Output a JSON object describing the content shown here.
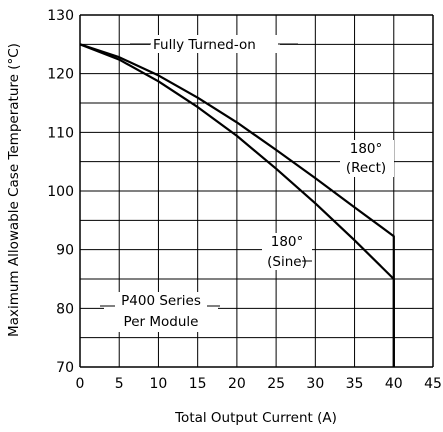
{
  "chart_data": {
    "type": "line",
    "title": "",
    "xlabel": "Total Output Current (A)",
    "ylabel": "Maximum Allowable Case Temperature (°C)",
    "xlim": [
      0,
      45
    ],
    "ylim": [
      70,
      130
    ],
    "x_ticks": [
      "0",
      "5",
      "10",
      "15",
      "20",
      "25",
      "30",
      "35",
      "40",
      "45"
    ],
    "y_ticks": [
      "70",
      "80",
      "90",
      "100",
      "110",
      "120",
      "130"
    ],
    "grid": true,
    "series": [
      {
        "name": "Fully Turned-on",
        "points": [
          [
            0,
            125
          ],
          [
            5,
            122.8
          ],
          [
            10,
            119.7
          ],
          [
            15,
            115.9
          ],
          [
            20,
            111.7
          ],
          [
            25,
            107
          ],
          [
            30,
            102.2
          ],
          [
            35,
            97.2
          ],
          [
            40,
            92.3
          ],
          [
            40,
            70
          ]
        ]
      },
      {
        "name": "180° (Rect)",
        "points": [
          [
            0,
            125
          ],
          [
            5,
            122.4
          ],
          [
            10,
            118.7
          ],
          [
            15,
            114.3
          ],
          [
            20,
            109.4
          ],
          [
            25,
            103.8
          ],
          [
            30,
            97.9
          ],
          [
            35,
            91.6
          ],
          [
            40,
            85
          ],
          [
            40,
            70
          ]
        ]
      }
    ],
    "annotations": {
      "fully_on": "Fully Turned-on",
      "rect_line1": "180°",
      "rect_line2": "(Rect)",
      "sine_line1": "180°",
      "sine_line2": "(Sine)",
      "note_line1": "P400 Series",
      "note_line2": "Per Module"
    }
  }
}
